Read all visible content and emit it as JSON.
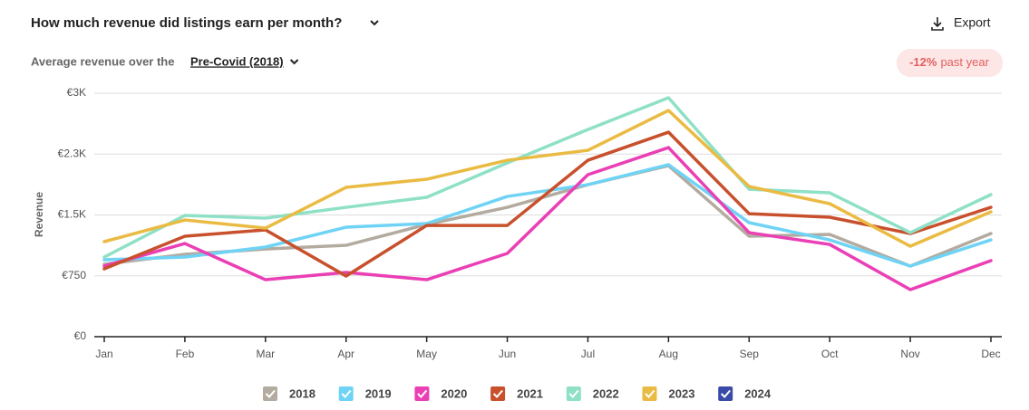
{
  "header": {
    "title": "How much revenue did listings earn per month?",
    "export": "Export",
    "subtitle": "Average revenue over the",
    "baseline": "Pre-Covid (2018)",
    "change": "-12%",
    "change_period": "past year"
  },
  "chart_data": {
    "type": "line",
    "ylabel": "Revenue",
    "categories": [
      "Jan",
      "Feb",
      "Mar",
      "Apr",
      "May",
      "Jun",
      "Jul",
      "Aug",
      "Sep",
      "Oct",
      "Nov",
      "Dec"
    ],
    "ylim": [
      0,
      3000
    ],
    "yticks": [
      {
        "value": 0,
        "label": "€0"
      },
      {
        "value": 750,
        "label": "€750"
      },
      {
        "value": 1500,
        "label": "€1.5K"
      },
      {
        "value": 2250,
        "label": "€2.3K"
      },
      {
        "value": 3000,
        "label": "€3K"
      }
    ],
    "grid": true,
    "series": [
      {
        "name": "2018",
        "color": "#b3ab9f",
        "values": [
          892,
          1015,
          1080,
          1126,
          1383,
          1594,
          1873,
          2107,
          1238,
          1260,
          870,
          1271
        ]
      },
      {
        "name": "2019",
        "color": "#6fd3f5",
        "values": [
          948,
          981,
          1104,
          1349,
          1394,
          1728,
          1873,
          2119,
          1405,
          1193,
          870,
          1193
        ]
      },
      {
        "name": "2020",
        "color": "#ea3fb5",
        "values": [
          870,
          1148,
          702,
          792,
          702,
          1026,
          1996,
          2330,
          1282,
          1137,
          580,
          937
        ]
      },
      {
        "name": "2021",
        "color": "#c8502c",
        "values": [
          836,
          1238,
          1316,
          747,
          1371,
          1371,
          2174,
          2520,
          1516,
          1472,
          1271,
          1594
        ]
      },
      {
        "name": "2022",
        "color": "#8ee0c6",
        "values": [
          981,
          1494,
          1461,
          1594,
          1717,
          2141,
          2553,
          2944,
          1817,
          1773,
          1282,
          1751
        ]
      },
      {
        "name": "2023",
        "color": "#eabb43",
        "values": [
          1171,
          1438,
          1338,
          1840,
          1940,
          2174,
          2297,
          2788,
          1851,
          1639,
          1115,
          1539
        ]
      },
      {
        "name": "2024",
        "color": "#3a4aa8",
        "values": [
          null,
          null,
          null,
          null,
          null,
          null,
          null,
          null,
          null,
          null,
          null,
          null
        ]
      }
    ]
  }
}
